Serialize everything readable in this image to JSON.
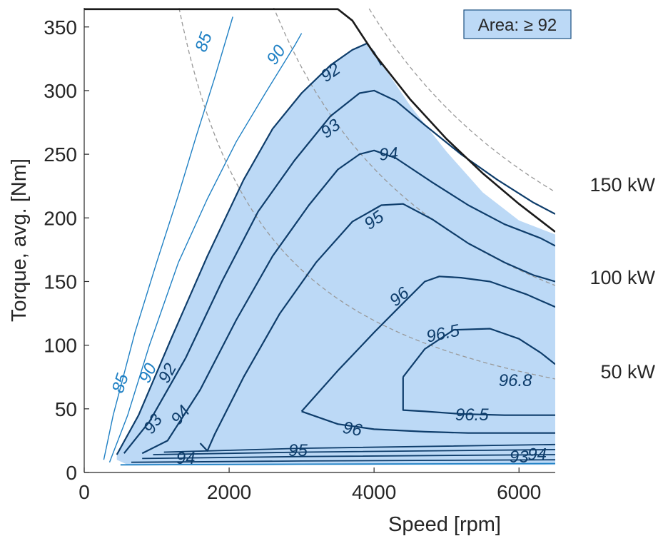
{
  "chart_data": {
    "type": "contour",
    "xlabel": "Speed [rpm]",
    "ylabel": "Torque, avg. [Nm]",
    "xlim": [
      0,
      6500
    ],
    "ylim": [
      0,
      365
    ],
    "xticks": [
      "0",
      "2000",
      "4000",
      "6000"
    ],
    "yticks": [
      "0",
      "50",
      "100",
      "150",
      "200",
      "250",
      "300",
      "350"
    ],
    "legend": {
      "label": "Area: ≥ 92",
      "position": "top-right",
      "color": "#bcd9f6"
    },
    "colors": {
      "dark_contour": "#0e3d6b",
      "light_contour": "#1f80c4",
      "fill": "#bcd9f6",
      "max_torque": "#1a1a1a",
      "power_lines": "#999999"
    },
    "max_torque_curve": [
      [
        0,
        364
      ],
      [
        3500,
        364
      ],
      [
        3700,
        355
      ],
      [
        4000,
        329
      ],
      [
        4500,
        293
      ],
      [
        5000,
        262
      ],
      [
        5500,
        235
      ],
      [
        6000,
        211
      ],
      [
        6500,
        189
      ]
    ],
    "shaded_region": {
      "label": "≥ 92",
      "outline": [
        [
          450,
          15
        ],
        [
          750,
          44
        ],
        [
          1200,
          105
        ],
        [
          1700,
          170
        ],
        [
          2200,
          230
        ],
        [
          2600,
          270
        ],
        [
          3000,
          298
        ],
        [
          3400,
          320
        ],
        [
          3700,
          332
        ],
        [
          3900,
          337
        ],
        [
          4000,
          330
        ],
        [
          4500,
          288
        ],
        [
          5000,
          252
        ],
        [
          5500,
          220
        ],
        [
          6000,
          198
        ],
        [
          6500,
          187
        ],
        [
          6500,
          6
        ],
        [
          600,
          6
        ],
        [
          450,
          10
        ]
      ]
    },
    "efficiency_contours": [
      {
        "level": "85",
        "style": "light",
        "points": [
          [
            270,
            10
          ],
          [
            400,
            45
          ],
          [
            700,
            110
          ],
          [
            1000,
            165
          ],
          [
            1300,
            218
          ],
          [
            1550,
            265
          ],
          [
            1800,
            310
          ],
          [
            2050,
            358
          ]
        ]
      },
      {
        "level": "90",
        "style": "light",
        "points": [
          [
            350,
            8
          ],
          [
            600,
            45
          ],
          [
            900,
            100
          ],
          [
            1300,
            165
          ],
          [
            1700,
            215
          ],
          [
            2100,
            260
          ],
          [
            2500,
            298
          ],
          [
            2900,
            335
          ],
          [
            3000,
            345
          ]
        ]
      },
      {
        "level": "92",
        "style": "dark",
        "points": [
          [
            450,
            14
          ],
          [
            750,
            45
          ],
          [
            1200,
            105
          ],
          [
            1700,
            170
          ],
          [
            2200,
            230
          ],
          [
            2600,
            270
          ],
          [
            3000,
            298
          ],
          [
            3400,
            320
          ],
          [
            3700,
            332
          ],
          [
            3900,
            337
          ],
          [
            4000,
            330
          ],
          [
            4100,
            320
          ]
        ]
      },
      {
        "level": "93",
        "style": "dark",
        "points": [
          [
            550,
            15
          ],
          [
            900,
            40
          ],
          [
            1400,
            90
          ],
          [
            1900,
            150
          ],
          [
            2400,
            205
          ],
          [
            2900,
            245
          ],
          [
            3400,
            280
          ],
          [
            3800,
            298
          ],
          [
            4000,
            300
          ],
          [
            4300,
            292
          ],
          [
            4700,
            273
          ],
          [
            5200,
            250
          ],
          [
            5700,
            230
          ],
          [
            6200,
            212
          ],
          [
            6500,
            203
          ]
        ]
      },
      {
        "level": "94",
        "style": "dark",
        "points": [
          [
            800,
            15
          ],
          [
            1150,
            25
          ],
          [
            1600,
            65
          ],
          [
            2100,
            120
          ],
          [
            2600,
            170
          ],
          [
            3100,
            210
          ],
          [
            3500,
            238
          ],
          [
            3800,
            250
          ],
          [
            4000,
            253
          ],
          [
            4300,
            247
          ],
          [
            4800,
            228
          ],
          [
            5300,
            210
          ],
          [
            5800,
            195
          ],
          [
            6300,
            184
          ],
          [
            6500,
            178
          ]
        ]
      },
      {
        "level": "95",
        "style": "dark",
        "points": [
          [
            1600,
            23
          ],
          [
            1700,
            17
          ],
          [
            1800,
            30
          ],
          [
            2200,
            75
          ],
          [
            2700,
            125
          ],
          [
            3200,
            165
          ],
          [
            3700,
            197
          ],
          [
            4100,
            210
          ],
          [
            4400,
            211
          ],
          [
            4800,
            199
          ],
          [
            5300,
            180
          ],
          [
            5800,
            165
          ],
          [
            6200,
            155
          ],
          [
            6500,
            150
          ]
        ]
      },
      {
        "level": "96",
        "style": "dark",
        "points": [
          [
            3000,
            48
          ],
          [
            3500,
            80
          ],
          [
            4000,
            110
          ],
          [
            4400,
            133
          ],
          [
            4700,
            150
          ],
          [
            4900,
            154
          ],
          [
            5200,
            153
          ],
          [
            5600,
            150
          ],
          [
            6100,
            140
          ],
          [
            6500,
            130
          ]
        ]
      },
      {
        "level": "96",
        "style": "dark",
        "points": [
          [
            3000,
            48
          ],
          [
            3500,
            38
          ],
          [
            4000,
            34
          ],
          [
            4700,
            32
          ],
          [
            5300,
            31
          ],
          [
            6000,
            31
          ],
          [
            6500,
            31
          ]
        ]
      },
      {
        "level": "96.5",
        "style": "dark",
        "points": [
          [
            4400,
            75
          ],
          [
            4700,
            97
          ],
          [
            5100,
            112
          ],
          [
            5600,
            113
          ],
          [
            6000,
            105
          ],
          [
            6300,
            94
          ],
          [
            6500,
            85
          ]
        ]
      },
      {
        "level": "96.5",
        "style": "dark",
        "points": [
          [
            4400,
            75
          ],
          [
            4400,
            49
          ],
          [
            4700,
            48
          ],
          [
            5200,
            46
          ],
          [
            5800,
            45
          ],
          [
            6200,
            45
          ],
          [
            6500,
            45
          ]
        ]
      }
    ],
    "contour_labels": [
      {
        "text": "85",
        "x": 1650,
        "y": 338,
        "angle": -70,
        "style": "light"
      },
      {
        "text": "90",
        "x": 2650,
        "y": 328,
        "angle": -55,
        "style": "light"
      },
      {
        "text": "92",
        "x": 3400,
        "y": 314,
        "angle": -35,
        "style": "dark"
      },
      {
        "text": "93",
        "x": 3400,
        "y": 270,
        "angle": -38,
        "style": "dark"
      },
      {
        "text": "94",
        "x": 4200,
        "y": 250,
        "angle": -5,
        "style": "dark"
      },
      {
        "text": "95",
        "x": 4000,
        "y": 198,
        "angle": -35,
        "style": "dark"
      },
      {
        "text": "96",
        "x": 4350,
        "y": 138,
        "angle": -40,
        "style": "dark"
      },
      {
        "text": "96.5",
        "x": 4950,
        "y": 109,
        "angle": -12,
        "style": "dark"
      },
      {
        "text": "96.8",
        "x": 5950,
        "y": 72,
        "angle": 0,
        "style": "dark"
      },
      {
        "text": "96.5",
        "x": 5350,
        "y": 45,
        "angle": 0,
        "style": "dark"
      },
      {
        "text": "96",
        "x": 3700,
        "y": 34,
        "angle": 10,
        "style": "dark"
      },
      {
        "text": "95",
        "x": 2950,
        "y": 17,
        "angle": 0,
        "style": "dark"
      },
      {
        "text": "94",
        "x": 1400,
        "y": 11,
        "angle": 0,
        "style": "dark"
      },
      {
        "text": "93",
        "x": 950,
        "y": 38,
        "angle": -55,
        "style": "dark"
      },
      {
        "text": "94",
        "x": 1330,
        "y": 45,
        "angle": -50,
        "style": "dark"
      },
      {
        "text": "92",
        "x": 1150,
        "y": 78,
        "angle": -62,
        "style": "dark"
      },
      {
        "text": "90",
        "x": 880,
        "y": 78,
        "angle": -65,
        "style": "light"
      },
      {
        "text": "85",
        "x": 500,
        "y": 70,
        "angle": -72,
        "style": "light"
      },
      {
        "text": "93",
        "x": 6000,
        "y": 12,
        "angle": 0,
        "style": "dark"
      },
      {
        "text": "94",
        "x": 6250,
        "y": 14,
        "angle": 0,
        "style": "dark"
      }
    ],
    "power_lines": [
      {
        "label": "150 kW",
        "kw": 150
      },
      {
        "label": "100 kW",
        "kw": 100
      },
      {
        "label": "50 kW",
        "kw": 50
      }
    ]
  }
}
